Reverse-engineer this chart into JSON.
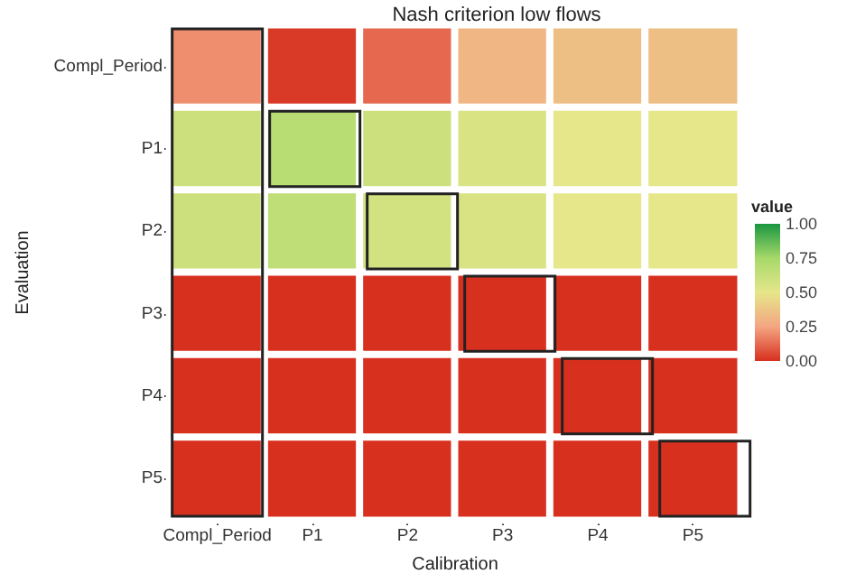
{
  "chart_data": {
    "type": "heatmap",
    "title": "Nash criterion low flows",
    "xlabel": "Calibration",
    "ylabel": "Evaluation",
    "clabel": "value",
    "categories": [
      "Compl_Period",
      "P1",
      "P2",
      "P3",
      "P4",
      "P5"
    ],
    "y_categories": [
      "Compl_Period",
      "P1",
      "P2",
      "P3",
      "P4",
      "P5"
    ],
    "cells": [
      [
        0.2,
        0.02,
        0.12,
        0.32,
        0.35,
        0.35
      ],
      [
        0.6,
        0.68,
        0.6,
        0.55,
        0.5,
        0.5
      ],
      [
        0.6,
        0.65,
        0.58,
        0.55,
        0.5,
        0.5
      ],
      [
        0,
        0,
        0,
        0,
        0,
        0
      ],
      [
        0,
        0,
        0,
        0,
        0,
        0
      ],
      [
        0,
        0,
        0,
        0,
        0,
        0
      ]
    ],
    "clim": [
      0,
      1
    ],
    "cticks": [
      {
        "value": 0,
        "label": "0.00"
      },
      {
        "value": 0.25,
        "label": "0.25"
      },
      {
        "value": 0.5,
        "label": "0.50"
      },
      {
        "value": 0.75,
        "label": "0.75"
      },
      {
        "value": 1,
        "label": "1.00"
      }
    ]
  }
}
